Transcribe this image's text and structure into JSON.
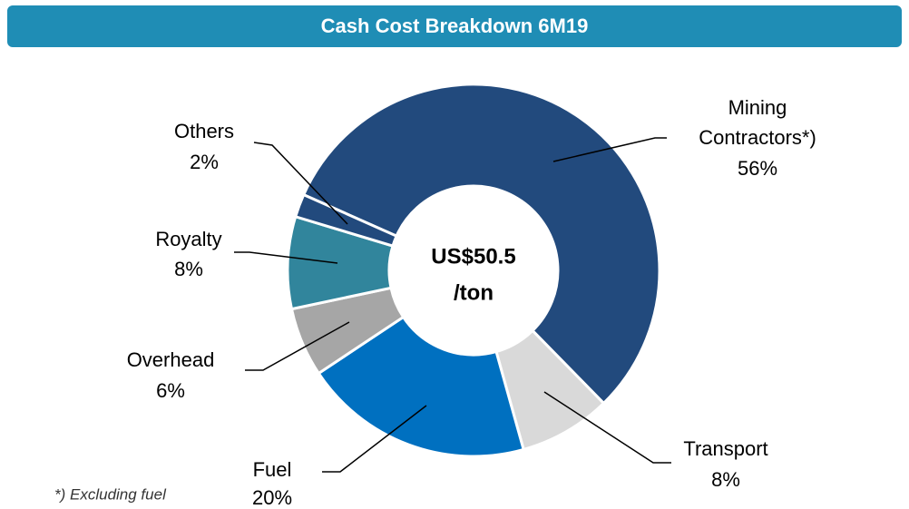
{
  "chart_data": {
    "type": "donut",
    "title": "Cash Cost Breakdown 6M19",
    "categories": [
      "Mining Contractors*)",
      "Transport",
      "Fuel",
      "Overhead",
      "Royalty",
      "Others"
    ],
    "values": [
      56,
      8,
      20,
      6,
      8,
      2
    ],
    "value_labels": [
      "56%",
      "8%",
      "20%",
      "6%",
      "8%",
      "2%"
    ],
    "colors": [
      "#224a7d",
      "#d9d9d9",
      "#0070c0",
      "#a6a6a6",
      "#31859c",
      "#224a7d"
    ],
    "center_label": [
      "US$50.5",
      "/ton"
    ],
    "footnote": "*) Excluding fuel"
  }
}
